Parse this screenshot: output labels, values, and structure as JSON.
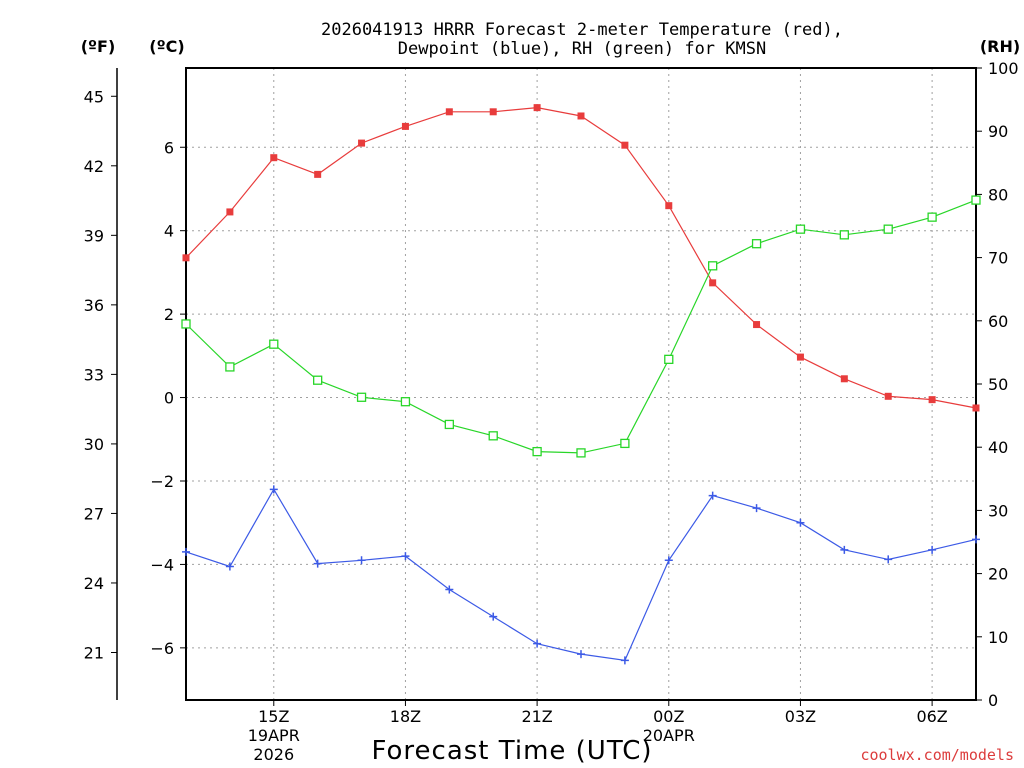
{
  "chart_data": {
    "type": "line",
    "title": [
      "2026041913 HRRR Forecast 2-meter Temperature (red),",
      "Dewpoint (blue), RH (green) for KMSN"
    ],
    "xlabel": "Forecast Time (UTC)",
    "axes": {
      "fahrenheit": {
        "unit_label": "(ºF)",
        "ticks": [
          21,
          24,
          27,
          30,
          33,
          36,
          39,
          42,
          45
        ]
      },
      "celsius": {
        "unit_label": "(ºC)",
        "ticks": [
          -6,
          -4,
          -2,
          0,
          2,
          4,
          6
        ],
        "ylim": [
          -7.25,
          7.9
        ]
      },
      "rh": {
        "unit_label": "(RH)",
        "ticks": [
          0,
          10,
          20,
          30,
          40,
          50,
          60,
          70,
          80,
          90,
          100
        ],
        "ylim": [
          0,
          100
        ]
      }
    },
    "x_hours": [
      13,
      14,
      15,
      16,
      17,
      18,
      19,
      20,
      21,
      22,
      23,
      24,
      25,
      26,
      27,
      28,
      29,
      30,
      31
    ],
    "x_range": [
      13,
      31
    ],
    "x_ticks": [
      {
        "hour": 15,
        "label": "15Z",
        "date": "19APR",
        "year": "2026"
      },
      {
        "hour": 18,
        "label": "18Z"
      },
      {
        "hour": 21,
        "label": "21Z"
      },
      {
        "hour": 24,
        "label": "00Z",
        "date": "20APR"
      },
      {
        "hour": 27,
        "label": "03Z"
      },
      {
        "hour": 30,
        "label": "06Z"
      }
    ],
    "series": [
      {
        "name": "Temperature",
        "unit": "C",
        "color": "#e83c3c",
        "marker": "filled-square",
        "values": [
          3.35,
          4.45,
          5.75,
          5.35,
          6.1,
          6.5,
          6.85,
          6.85,
          6.95,
          6.75,
          6.05,
          4.6,
          2.75,
          1.75,
          0.97,
          0.45,
          0.03,
          -0.05,
          -0.25
        ]
      },
      {
        "name": "Dewpoint",
        "unit": "C",
        "color": "#3c5ae6",
        "marker": "plus",
        "values": [
          -3.7,
          -4.05,
          -2.2,
          -3.98,
          -3.9,
          -3.8,
          -4.6,
          -5.25,
          -5.9,
          -6.15,
          -6.3,
          -3.9,
          -2.35,
          -2.65,
          -3.0,
          -3.65,
          -3.88,
          -3.65,
          -3.4
        ]
      },
      {
        "name": "RH",
        "unit": "%",
        "color": "#28d628",
        "marker": "open-square",
        "values": [
          59.5,
          52.7,
          56.3,
          50.6,
          47.9,
          47.2,
          43.6,
          41.8,
          39.3,
          39.1,
          40.6,
          53.9,
          68.7,
          72.2,
          74.5,
          73.6,
          74.5,
          76.4,
          79.1
        ]
      }
    ]
  },
  "credit": "coolwx.com/models"
}
